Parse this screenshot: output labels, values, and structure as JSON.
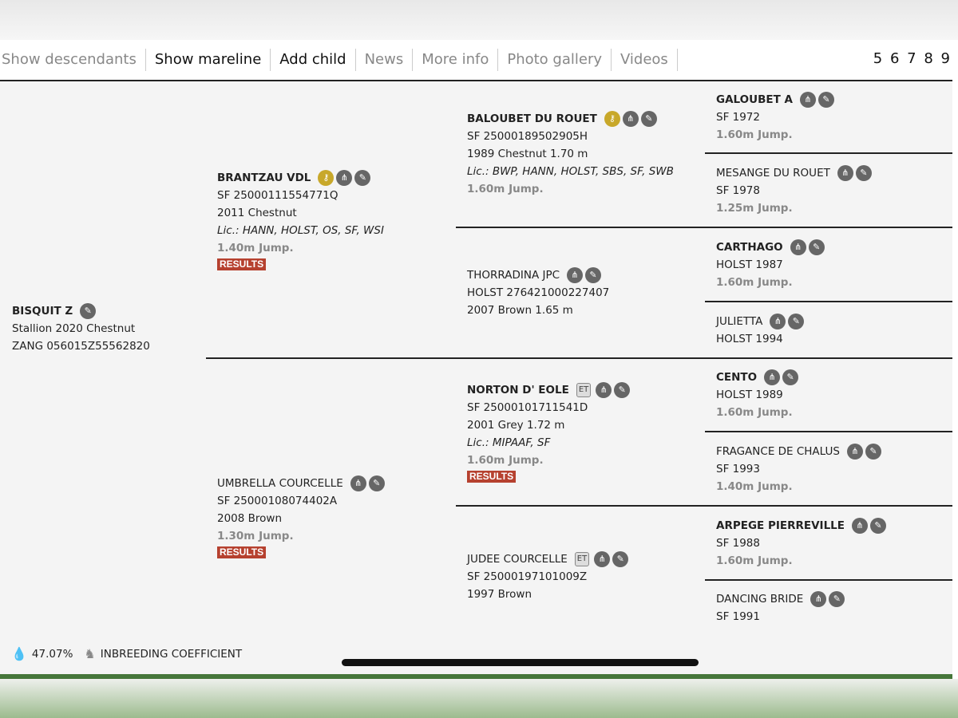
{
  "nav": {
    "items": [
      {
        "label": "Show descendants",
        "active": false
      },
      {
        "label": "Show mareline",
        "active": true
      },
      {
        "label": "Add child",
        "active": true
      },
      {
        "label": "News",
        "active": false
      },
      {
        "label": "More info",
        "active": false
      },
      {
        "label": "Photo gallery",
        "active": false
      },
      {
        "label": "Videos",
        "active": false
      }
    ],
    "pages": [
      "5",
      "6",
      "7",
      "8",
      "9"
    ]
  },
  "horses": {
    "subject": {
      "name": "BISQUIT Z",
      "l1": "Stallion 2020 Chestnut",
      "l2": "ZANG 056015Z55562820"
    },
    "s": {
      "name": "BRANTZAU VDL",
      "l1": "SF 25000111554771Q",
      "l2": "2011 Chestnut",
      "lic": "Lic.: HANN, HOLST, OS, SF, WSI",
      "jump": "1.40m Jump.",
      "results": "RESULTS"
    },
    "d": {
      "name": "UMBRELLA COURCELLE",
      "l1": "SF 25000108074402A",
      "l2": "2008 Brown",
      "jump": "1.30m Jump.",
      "results": "RESULTS"
    },
    "ss": {
      "name": "BALOUBET DU ROUET",
      "l1": "SF 25000189502905H",
      "l2": "1989 Chestnut 1.70 m",
      "lic": "Lic.: BWP, HANN, HOLST, SBS, SF, SWB",
      "jump": "1.60m Jump."
    },
    "sd": {
      "name": "THORRADINA JPC",
      "l1": "HOLST 276421000227407",
      "l2": "2007 Brown 1.65 m"
    },
    "ds": {
      "name": "NORTON D' EOLE",
      "badge": "ET",
      "l1": "SF 25000101711541D",
      "l2": "2001 Grey 1.72 m",
      "lic": "Lic.: MIPAAF, SF",
      "jump": "1.60m Jump.",
      "results": "RESULTS"
    },
    "dd": {
      "name": "JUDEE COURCELLE",
      "badge": "ET",
      "l1": "SF 25000197101009Z",
      "l2": "1997 Brown"
    },
    "sss": {
      "name": "GALOUBET A",
      "l1": "SF 1972",
      "jump": "1.60m Jump."
    },
    "ssd": {
      "name": "MESANGE DU ROUET",
      "l1": "SF 1978",
      "jump": "1.25m Jump."
    },
    "sds": {
      "name": "CARTHAGO",
      "l1": "HOLST 1987",
      "jump": "1.60m Jump."
    },
    "sdd": {
      "name": "JULIETTA",
      "l1": "HOLST 1994"
    },
    "dss": {
      "name": "CENTO",
      "l1": "HOLST 1989",
      "jump": "1.60m Jump."
    },
    "dsd": {
      "name": "FRAGANCE DE CHALUS",
      "l1": "SF 1993",
      "jump": "1.40m Jump."
    },
    "dds": {
      "name": "ARPEGE PIERREVILLE",
      "l1": "SF 1988",
      "jump": "1.60m Jump."
    },
    "ddd": {
      "name": "DANCING BRIDE",
      "l1": "SF 1991"
    }
  },
  "footer": {
    "percent": "47.07%",
    "label": "INBREEDING COEFFICIENT"
  },
  "colors": {
    "accent_green": "#46763a",
    "results_red": "#b6412f",
    "key_gold": "#c8a82a"
  },
  "icons": [
    "pedigree-icon",
    "edit-icon",
    "key-icon",
    "drop-percent-icon",
    "horse-icon"
  ]
}
